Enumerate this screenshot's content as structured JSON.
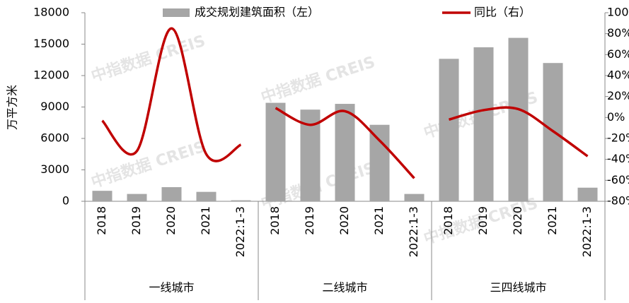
{
  "chart_data": {
    "type": "bar-line",
    "y_axis_label": "万平方米",
    "watermark": "中指数据 CREIS",
    "groups": [
      {
        "name": "一线城市",
        "categories": [
          "2018",
          "2019",
          "2020",
          "2021",
          "2022:1-3"
        ]
      },
      {
        "name": "二线城市",
        "categories": [
          "2018",
          "2019",
          "2020",
          "2021",
          "2022:1-3"
        ]
      },
      {
        "name": "三四线城市",
        "categories": [
          "2018",
          "2019",
          "2020",
          "2021",
          "2022:1-3"
        ]
      }
    ],
    "series": [
      {
        "name": "成交规划建筑面积（左）",
        "type": "bar",
        "color": "#a6a6a6",
        "values": [
          [
            1000,
            700,
            1350,
            900,
            100
          ],
          [
            9400,
            8750,
            9300,
            7300,
            700
          ],
          [
            13600,
            14700,
            15600,
            13200,
            1300
          ]
        ]
      },
      {
        "name": "同比（右）",
        "type": "line",
        "axis": "y2",
        "color": "#c00000",
        "values": [
          [
            -3,
            -32,
            85,
            -35,
            -26
          ],
          [
            9,
            -7,
            6,
            -22,
            -58
          ],
          [
            -2,
            7,
            8,
            -13,
            -37
          ]
        ]
      }
    ],
    "ylim": [
      0,
      18000
    ],
    "yticks": [
      0,
      3000,
      6000,
      9000,
      12000,
      15000,
      18000
    ],
    "y2lim": [
      -80,
      100
    ],
    "y2ticks": [
      {
        "value": -80,
        "label": "-80%"
      },
      {
        "value": -60,
        "label": "-60%"
      },
      {
        "value": -40,
        "label": "-40%"
      },
      {
        "value": -20,
        "label": "-20%"
      },
      {
        "value": 0,
        "label": "0%"
      },
      {
        "value": 20,
        "label": "20%"
      },
      {
        "value": 40,
        "label": "40%"
      },
      {
        "value": 60,
        "label": "60%"
      },
      {
        "value": 80,
        "label": "80%"
      },
      {
        "value": 100,
        "label": "100%"
      }
    ]
  }
}
